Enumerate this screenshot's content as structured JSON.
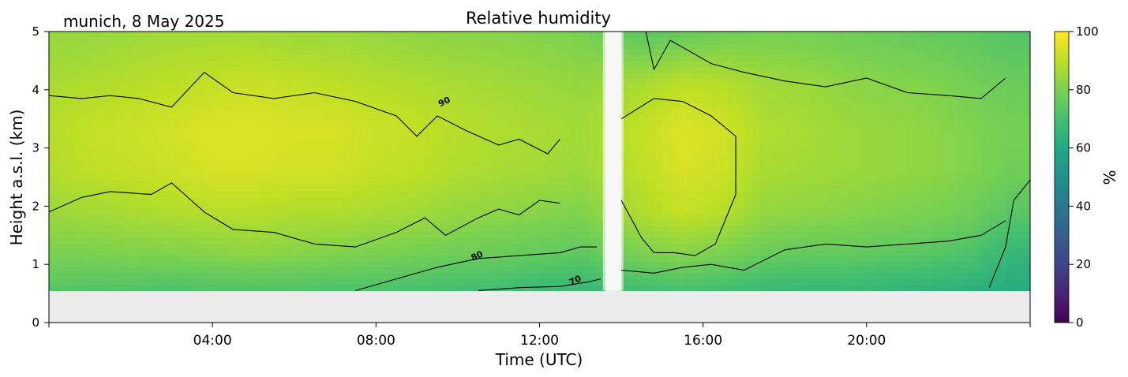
{
  "chart_data": {
    "type": "heatmap",
    "title": "Relative humidity",
    "location_label": "munich, 8 May 2025",
    "xlabel": "Time (UTC)",
    "ylabel": "Height a.s.l. (km)",
    "x_unit": "hours UTC",
    "xlim": [
      0,
      24
    ],
    "ylim": [
      0,
      5
    ],
    "x_ticks": [
      {
        "value": 4,
        "label": "04:00"
      },
      {
        "value": 8,
        "label": "08:00"
      },
      {
        "value": 12,
        "label": "12:00"
      },
      {
        "value": 16,
        "label": "16:00"
      },
      {
        "value": 20,
        "label": "20:00"
      }
    ],
    "y_ticks": [
      {
        "value": 0,
        "label": "0"
      },
      {
        "value": 1,
        "label": "1"
      },
      {
        "value": 2,
        "label": "2"
      },
      {
        "value": 3,
        "label": "3"
      },
      {
        "value": 4,
        "label": "4"
      },
      {
        "value": 5,
        "label": "5"
      }
    ],
    "colorbar": {
      "label": "%",
      "range": [
        0,
        100
      ],
      "colormap": "viridis",
      "ticks": [
        {
          "value": 0,
          "label": "0"
        },
        {
          "value": 20,
          "label": "20"
        },
        {
          "value": 40,
          "label": "40"
        },
        {
          "value": 60,
          "label": "60"
        },
        {
          "value": 80,
          "label": "80"
        },
        {
          "value": 100,
          "label": "100"
        }
      ]
    },
    "data_floor_km": 0.55,
    "gap": {
      "start_h": 13.55,
      "end_h": 14.05
    },
    "contour_labels": [
      {
        "label": "90",
        "x_h": 9.7,
        "y_km": 3.75
      },
      {
        "label": "80",
        "x_h": 10.5,
        "y_km": 1.1
      },
      {
        "label": "70",
        "x_h": 12.9,
        "y_km": 0.68
      }
    ],
    "field_columns": [
      {
        "t": 0.0,
        "rh": [
          74,
          80,
          85,
          88,
          89,
          87,
          84
        ]
      },
      {
        "t": 1.0,
        "rh": [
          73,
          80,
          86,
          90,
          91,
          88,
          84
        ]
      },
      {
        "t": 2.0,
        "rh": [
          73,
          81,
          87,
          91,
          92,
          89,
          85
        ]
      },
      {
        "t": 3.0,
        "rh": [
          72,
          81,
          88,
          92,
          93,
          90,
          86
        ]
      },
      {
        "t": 4.0,
        "rh": [
          73,
          82,
          89,
          94,
          95,
          91,
          86
        ]
      },
      {
        "t": 5.0,
        "rh": [
          73,
          83,
          89,
          94,
          95,
          92,
          86
        ]
      },
      {
        "t": 6.0,
        "rh": [
          73,
          82,
          88,
          93,
          94,
          91,
          85
        ]
      },
      {
        "t": 7.0,
        "rh": [
          72,
          81,
          88,
          93,
          94,
          90,
          85
        ]
      },
      {
        "t": 8.0,
        "rh": [
          72,
          80,
          87,
          91,
          92,
          89,
          84
        ]
      },
      {
        "t": 9.0,
        "rh": [
          71,
          79,
          86,
          90,
          91,
          88,
          83
        ]
      },
      {
        "t": 10.0,
        "rh": [
          70,
          78,
          84,
          88,
          89,
          87,
          82
        ]
      },
      {
        "t": 11.0,
        "rh": [
          70,
          77,
          83,
          87,
          88,
          86,
          82
        ]
      },
      {
        "t": 12.0,
        "rh": [
          68,
          76,
          82,
          86,
          87,
          85,
          81
        ]
      },
      {
        "t": 13.0,
        "rh": [
          67,
          75,
          81,
          85,
          86,
          84,
          80
        ]
      },
      {
        "t": 14.5,
        "rh": [
          70,
          80,
          88,
          90,
          91,
          87,
          74
        ]
      },
      {
        "t": 15.5,
        "rh": [
          71,
          82,
          91,
          94,
          95,
          90,
          76
        ]
      },
      {
        "t": 16.5,
        "rh": [
          70,
          80,
          89,
          92,
          93,
          89,
          78
        ]
      },
      {
        "t": 17.5,
        "rh": [
          68,
          77,
          84,
          87,
          88,
          86,
          79
        ]
      },
      {
        "t": 18.5,
        "rh": [
          67,
          76,
          83,
          86,
          87,
          85,
          79
        ]
      },
      {
        "t": 19.5,
        "rh": [
          67,
          76,
          82,
          85,
          85,
          83,
          78
        ]
      },
      {
        "t": 20.5,
        "rh": [
          66,
          75,
          81,
          84,
          84,
          82,
          77
        ]
      },
      {
        "t": 21.5,
        "rh": [
          65,
          74,
          80,
          83,
          83,
          81,
          76
        ]
      },
      {
        "t": 22.5,
        "rh": [
          64,
          72,
          78,
          81,
          81,
          79,
          75
        ]
      },
      {
        "t": 23.5,
        "rh": [
          62,
          66,
          74,
          78,
          79,
          77,
          73
        ]
      }
    ],
    "field_heights_km": [
      0.6,
      1.2,
      1.9,
      2.6,
      3.3,
      4.1,
      5.0
    ],
    "contours": [
      {
        "level": 90,
        "points": [
          [
            0.0,
            3.9
          ],
          [
            0.8,
            3.85
          ],
          [
            1.5,
            3.9
          ],
          [
            2.2,
            3.85
          ],
          [
            3.0,
            3.7
          ],
          [
            3.8,
            4.3
          ],
          [
            4.5,
            3.95
          ],
          [
            5.5,
            3.85
          ],
          [
            6.5,
            3.95
          ],
          [
            7.5,
            3.8
          ],
          [
            8.5,
            3.55
          ],
          [
            9.0,
            3.2
          ],
          [
            9.5,
            3.55
          ],
          [
            10.2,
            3.3
          ],
          [
            11.0,
            3.05
          ],
          [
            11.5,
            3.15
          ],
          [
            12.2,
            2.9
          ],
          [
            12.5,
            3.15
          ]
        ]
      },
      {
        "level": 90,
        "points": [
          [
            0.0,
            1.9
          ],
          [
            0.8,
            2.15
          ],
          [
            1.5,
            2.25
          ],
          [
            2.5,
            2.2
          ],
          [
            3.0,
            2.4
          ],
          [
            3.8,
            1.9
          ],
          [
            4.5,
            1.6
          ],
          [
            5.5,
            1.55
          ],
          [
            6.5,
            1.35
          ],
          [
            7.5,
            1.3
          ],
          [
            8.5,
            1.55
          ],
          [
            9.2,
            1.8
          ],
          [
            9.7,
            1.5
          ],
          [
            10.5,
            1.8
          ],
          [
            11.0,
            1.95
          ],
          [
            11.5,
            1.85
          ],
          [
            12.0,
            2.1
          ],
          [
            12.5,
            2.05
          ]
        ]
      },
      {
        "level": 90,
        "points": [
          [
            14.0,
            3.5
          ],
          [
            14.8,
            3.85
          ],
          [
            15.5,
            3.8
          ],
          [
            16.2,
            3.55
          ],
          [
            16.8,
            3.2
          ],
          [
            16.8,
            2.2
          ],
          [
            16.3,
            1.35
          ],
          [
            15.8,
            1.15
          ],
          [
            15.3,
            1.2
          ],
          [
            14.8,
            1.2
          ],
          [
            14.5,
            1.45
          ],
          [
            14.0,
            2.1
          ]
        ]
      },
      {
        "level": 80,
        "points": [
          [
            0.0,
            5.0
          ],
          [
            6.0,
            5.0
          ],
          [
            8.5,
            5.0
          ],
          [
            9.5,
            5.0
          ]
        ]
      },
      {
        "level": 80,
        "points": [
          [
            7.5,
            0.55
          ],
          [
            8.5,
            0.75
          ],
          [
            9.5,
            0.95
          ],
          [
            10.5,
            1.1
          ],
          [
            11.5,
            1.15
          ],
          [
            12.5,
            1.2
          ],
          [
            13.0,
            1.3
          ],
          [
            13.4,
            1.3
          ]
        ]
      },
      {
        "level": 80,
        "points": [
          [
            14.0,
            0.9
          ],
          [
            14.8,
            0.85
          ],
          [
            15.5,
            0.95
          ],
          [
            16.2,
            1.0
          ],
          [
            17.0,
            0.9
          ],
          [
            18.0,
            1.25
          ],
          [
            19.0,
            1.35
          ],
          [
            20.0,
            1.3
          ],
          [
            21.0,
            1.35
          ],
          [
            22.0,
            1.4
          ],
          [
            22.8,
            1.5
          ],
          [
            23.4,
            1.75
          ]
        ]
      },
      {
        "level": 80,
        "points": [
          [
            14.6,
            5.0
          ],
          [
            14.8,
            4.35
          ],
          [
            15.2,
            4.85
          ],
          [
            16.2,
            4.45
          ],
          [
            17.0,
            4.3
          ],
          [
            18.0,
            4.15
          ],
          [
            19.0,
            4.05
          ],
          [
            20.0,
            4.2
          ],
          [
            21.0,
            3.95
          ],
          [
            22.0,
            3.9
          ],
          [
            22.8,
            3.85
          ],
          [
            23.4,
            4.2
          ]
        ]
      },
      {
        "level": 70,
        "points": [
          [
            10.5,
            0.55
          ],
          [
            11.5,
            0.6
          ],
          [
            12.5,
            0.62
          ],
          [
            13.2,
            0.7
          ],
          [
            13.5,
            0.75
          ]
        ]
      },
      {
        "level": 70,
        "points": [
          [
            23.0,
            0.6
          ],
          [
            23.4,
            1.3
          ],
          [
            23.6,
            2.1
          ],
          [
            24.0,
            2.45
          ]
        ]
      }
    ]
  }
}
